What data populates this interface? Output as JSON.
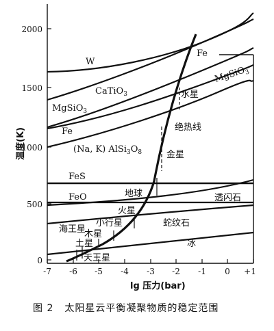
{
  "axes": {
    "x_label": "lg 压力(bar)",
    "y_label": "温度(K)",
    "x_ticks": [
      "-7",
      "-6",
      "-5",
      "-4",
      "-3",
      "-2",
      "-1",
      "0",
      "+1"
    ],
    "y_ticks": [
      "0",
      "500",
      "1000",
      "1500",
      "2000"
    ],
    "xlim": [
      -7,
      1
    ],
    "ylim": [
      0,
      2200
    ]
  },
  "regions": {
    "W": "W",
    "CaTiO3": "CaTiO",
    "CaTiO3_sub": "3",
    "MgSiO3_left": "MgSiO",
    "MgSiO3_left_sub": "3",
    "MgSiO3_right": "MgSiO",
    "MgSiO3_right_sub": "3",
    "Fe_left": "Fe",
    "Fe_right": "Fe",
    "NaK": "(Na, K) AlSi",
    "NaK_sub1": "3",
    "NaK_o": "O",
    "NaK_sub2": "8",
    "FeS": "FeS",
    "FeO": "FeO",
    "adiabat": "绝热线",
    "tremolite": "透闪石",
    "serpentine": "蛇纹石",
    "ice": "冰"
  },
  "bodies": {
    "mercury": "水星",
    "venus": "金星",
    "earth": "地球",
    "mars": "火星",
    "asteroid": "小行星",
    "jupiter": "木星",
    "saturn": "土星",
    "uranus": "天王星",
    "neptune": "海王星"
  },
  "caption": {
    "number": "图 2",
    "text": "太阳星云平衡凝聚物质的稳定范围"
  }
}
